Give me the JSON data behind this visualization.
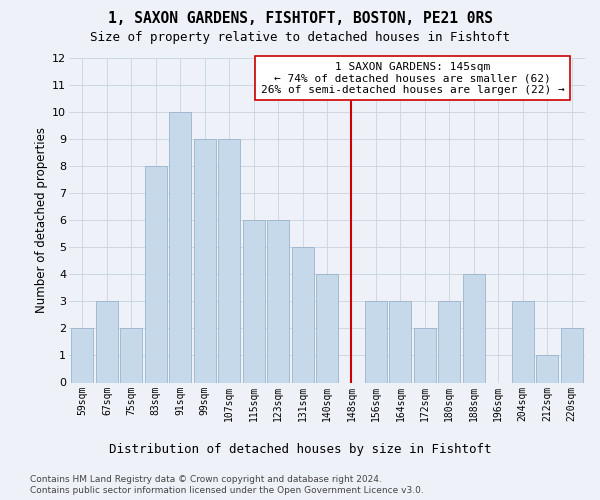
{
  "title1": "1, SAXON GARDENS, FISHTOFT, BOSTON, PE21 0RS",
  "title2": "Size of property relative to detached houses in Fishtoft",
  "xlabel": "Distribution of detached houses by size in Fishtoft",
  "ylabel": "Number of detached properties",
  "categories": [
    "59sqm",
    "67sqm",
    "75sqm",
    "83sqm",
    "91sqm",
    "99sqm",
    "107sqm",
    "115sqm",
    "123sqm",
    "131sqm",
    "140sqm",
    "148sqm",
    "156sqm",
    "164sqm",
    "172sqm",
    "180sqm",
    "188sqm",
    "196sqm",
    "204sqm",
    "212sqm",
    "220sqm"
  ],
  "values": [
    2,
    3,
    2,
    8,
    10,
    9,
    9,
    6,
    6,
    5,
    4,
    0,
    3,
    3,
    2,
    3,
    4,
    0,
    3,
    1,
    2
  ],
  "bar_color": "#c6d9ea",
  "bar_edgecolor": "#9ab4cc",
  "vline_color": "#cc0000",
  "vline_x": 11.0,
  "annotation_text": "1 SAXON GARDENS: 145sqm\n← 74% of detached houses are smaller (62)\n26% of semi-detached houses are larger (22) →",
  "annotation_box_facecolor": "#ffffff",
  "annotation_box_edgecolor": "#cc0000",
  "ylim": [
    0,
    12
  ],
  "yticks": [
    0,
    1,
    2,
    3,
    4,
    5,
    6,
    7,
    8,
    9,
    10,
    11,
    12
  ],
  "grid_color": "#c8d4e0",
  "footer1": "Contains HM Land Registry data © Crown copyright and database right 2024.",
  "footer2": "Contains public sector information licensed under the Open Government Licence v3.0.",
  "bg_color": "#eef2f8",
  "title1_fontsize": 10.5,
  "title2_fontsize": 9,
  "ylabel_fontsize": 8.5,
  "xlabel_fontsize": 9,
  "tick_fontsize": 7,
  "annotation_fontsize": 8,
  "footer_fontsize": 6.5
}
